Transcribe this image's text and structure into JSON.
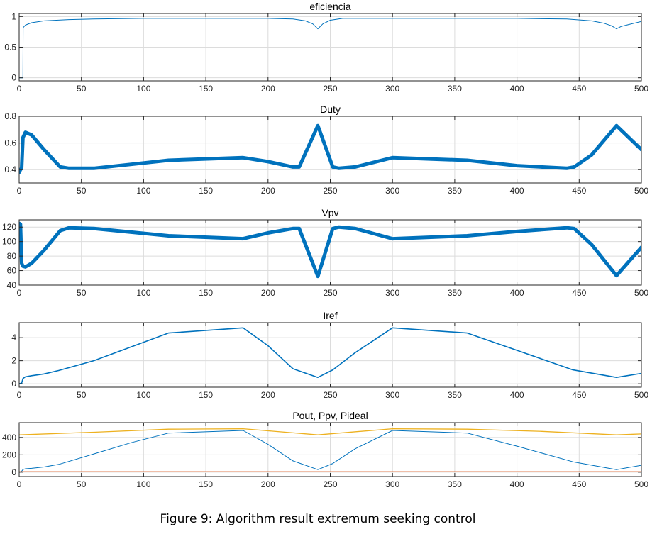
{
  "caption": "Figure 9: Algorithm result extremum seeking control",
  "colors": {
    "blue": "#0072bd",
    "orange": "#d95319",
    "yellow": "#edb120",
    "grid": "#dcdcdc",
    "axis": "#262626"
  },
  "chart_data": [
    {
      "type": "line",
      "title": "eficiencia",
      "xlim": [
        0,
        500
      ],
      "ylim": [
        -0.05,
        1.05
      ],
      "xticks": [
        0,
        50,
        100,
        150,
        200,
        250,
        300,
        350,
        400,
        450,
        500
      ],
      "yticks": [
        0,
        0.5,
        1
      ],
      "grid": true,
      "series": [
        {
          "color": "#0072bd",
          "width": 1,
          "x": [
            0,
            2,
            3,
            3.2,
            5,
            10,
            20,
            40,
            60,
            100,
            150,
            200,
            220,
            230,
            236,
            240,
            244,
            250,
            260,
            300,
            350,
            400,
            440,
            460,
            470,
            476,
            480,
            484,
            490,
            500
          ],
          "y": [
            0,
            0,
            0,
            0.82,
            0.86,
            0.9,
            0.93,
            0.95,
            0.96,
            0.97,
            0.97,
            0.97,
            0.96,
            0.93,
            0.88,
            0.8,
            0.88,
            0.94,
            0.97,
            0.97,
            0.97,
            0.97,
            0.96,
            0.93,
            0.89,
            0.85,
            0.8,
            0.84,
            0.87,
            0.92
          ]
        }
      ]
    },
    {
      "type": "line",
      "title": "Duty",
      "xlim": [
        0,
        500
      ],
      "ylim": [
        0.3,
        0.8
      ],
      "xticks": [
        0,
        50,
        100,
        150,
        200,
        250,
        300,
        350,
        400,
        450,
        500
      ],
      "yticks": [
        0.4,
        0.6,
        0.8
      ],
      "grid": true,
      "series": [
        {
          "color": "#0072bd",
          "width": 5,
          "x": [
            0,
            1,
            2,
            3,
            5,
            10,
            20,
            33,
            40,
            60,
            90,
            120,
            180,
            200,
            220,
            225,
            240,
            252,
            257,
            270,
            300,
            360,
            400,
            440,
            446,
            460,
            480,
            500
          ],
          "y": [
            0.38,
            0.4,
            0.41,
            0.64,
            0.68,
            0.66,
            0.55,
            0.42,
            0.41,
            0.41,
            0.44,
            0.47,
            0.49,
            0.46,
            0.42,
            0.42,
            0.73,
            0.42,
            0.41,
            0.42,
            0.49,
            0.47,
            0.43,
            0.41,
            0.42,
            0.51,
            0.73,
            0.55
          ]
        }
      ]
    },
    {
      "type": "line",
      "title": "Vpv",
      "xlim": [
        0,
        500
      ],
      "ylim": [
        40,
        130
      ],
      "xticks": [
        0,
        50,
        100,
        150,
        200,
        250,
        300,
        350,
        400,
        450,
        500
      ],
      "yticks": [
        40,
        60,
        80,
        100,
        120
      ],
      "grid": true,
      "series": [
        {
          "color": "#0072bd",
          "width": 5,
          "x": [
            0,
            1,
            2,
            3,
            5,
            10,
            20,
            33,
            40,
            60,
            90,
            120,
            180,
            200,
            220,
            225,
            240,
            252,
            257,
            270,
            300,
            360,
            400,
            440,
            446,
            460,
            480,
            500
          ],
          "y": [
            125,
            124,
            70,
            66,
            65,
            70,
            88,
            115,
            119,
            118,
            113,
            108,
            104,
            112,
            118,
            118,
            52,
            118,
            120,
            118,
            104,
            108,
            114,
            119,
            118,
            96,
            53,
            92
          ]
        }
      ]
    },
    {
      "type": "line",
      "title": "Iref",
      "xlim": [
        0,
        500
      ],
      "ylim": [
        -0.3,
        5.3
      ],
      "xticks": [
        0,
        50,
        100,
        150,
        200,
        250,
        300,
        350,
        400,
        450,
        500
      ],
      "yticks": [
        0,
        2,
        4
      ],
      "grid": true,
      "series": [
        {
          "color": "#0072bd",
          "width": 1.6,
          "x": [
            0,
            2,
            3,
            5,
            10,
            20,
            32,
            60,
            90,
            120,
            180,
            200,
            220,
            240,
            252,
            270,
            300,
            360,
            400,
            445,
            480,
            500
          ],
          "y": [
            0,
            0.05,
            0.45,
            0.6,
            0.7,
            0.85,
            1.15,
            2.0,
            3.2,
            4.4,
            4.85,
            3.3,
            1.3,
            0.55,
            1.2,
            2.7,
            4.85,
            4.4,
            2.9,
            1.2,
            0.55,
            0.9
          ]
        }
      ]
    },
    {
      "type": "line",
      "title": "Pout, Ppv, Pideal",
      "xlim": [
        0,
        500
      ],
      "ylim": [
        -50,
        570
      ],
      "xticks": [
        0,
        50,
        100,
        150,
        200,
        250,
        300,
        350,
        400,
        450,
        500
      ],
      "yticks": [
        0,
        200,
        400
      ],
      "grid": true,
      "series": [
        {
          "color": "#0072bd",
          "width": 1,
          "x": [
            0,
            2,
            3,
            5,
            10,
            20,
            32,
            60,
            90,
            120,
            180,
            200,
            220,
            240,
            252,
            270,
            300,
            360,
            400,
            445,
            480,
            500
          ],
          "y": [
            0,
            10,
            30,
            40,
            45,
            60,
            90,
            210,
            340,
            450,
            480,
            320,
            130,
            30,
            100,
            270,
            480,
            450,
            300,
            120,
            30,
            80
          ]
        },
        {
          "color": "#d95319",
          "width": 1.3,
          "x": [
            0,
            500
          ],
          "y": [
            5,
            5
          ]
        },
        {
          "color": "#edb120",
          "width": 1.3,
          "x": [
            0,
            60,
            120,
            180,
            240,
            300,
            360,
            420,
            480,
            500
          ],
          "y": [
            430,
            460,
            495,
            500,
            430,
            500,
            495,
            470,
            430,
            440
          ]
        }
      ]
    }
  ]
}
